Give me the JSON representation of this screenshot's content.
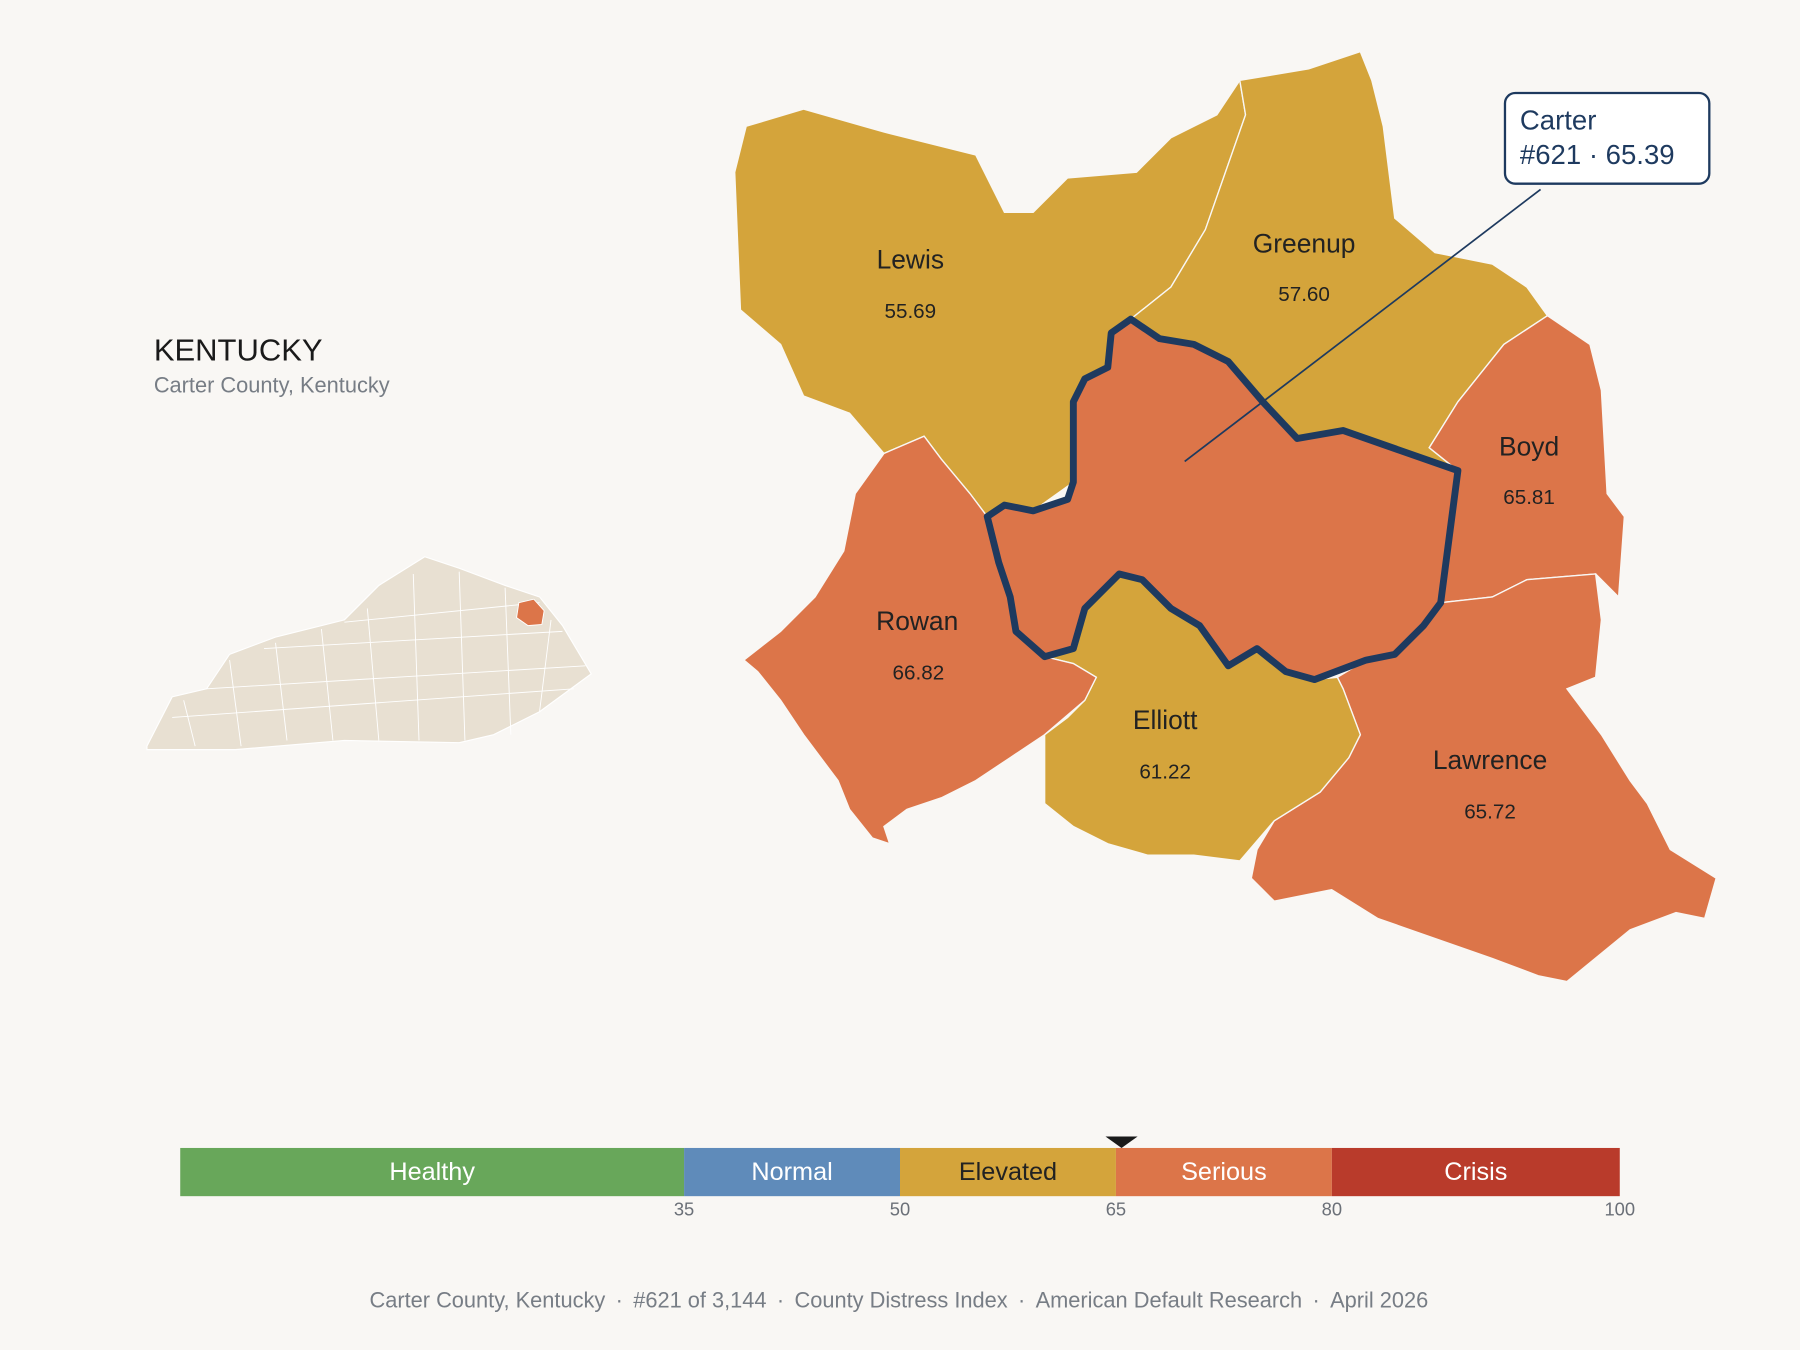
{
  "header": {
    "title": "KENTUCKY",
    "subtitle": "Carter County, Kentucky"
  },
  "counties": [
    {
      "name": "Lewis",
      "value": "55.69"
    },
    {
      "name": "Greenup",
      "value": "57.60"
    },
    {
      "name": "Boyd",
      "value": "65.81"
    },
    {
      "name": "Rowan",
      "value": "66.82"
    },
    {
      "name": "Elliott",
      "value": "61.22"
    },
    {
      "name": "Lawrence",
      "value": "65.72"
    }
  ],
  "callout": {
    "name": "Carter",
    "rank": "#621",
    "separator": "·",
    "score": 65.39
  },
  "scale": {
    "range": [
      0,
      100
    ],
    "ticks": [
      35,
      50,
      65,
      80,
      100
    ],
    "bands": [
      {
        "label": "Healthy",
        "color": "#68a75a",
        "text_color": "#ffffff"
      },
      {
        "label": "Normal",
        "color": "#5f8bba",
        "text_color": "#ffffff"
      },
      {
        "label": "Elevated",
        "color": "#d4a43b",
        "text_color": "#222222"
      },
      {
        "label": "Serious",
        "color": "#dc7549",
        "text_color": "#ffffff"
      },
      {
        "label": "Crisis",
        "color": "#b93b2b",
        "text_color": "#ffffff"
      }
    ]
  },
  "footer": {
    "separator": "·",
    "items": [
      "Carter County, Kentucky",
      "#621 of 3,144",
      "County Distress Index",
      "American Default Research",
      "April 2026"
    ]
  }
}
